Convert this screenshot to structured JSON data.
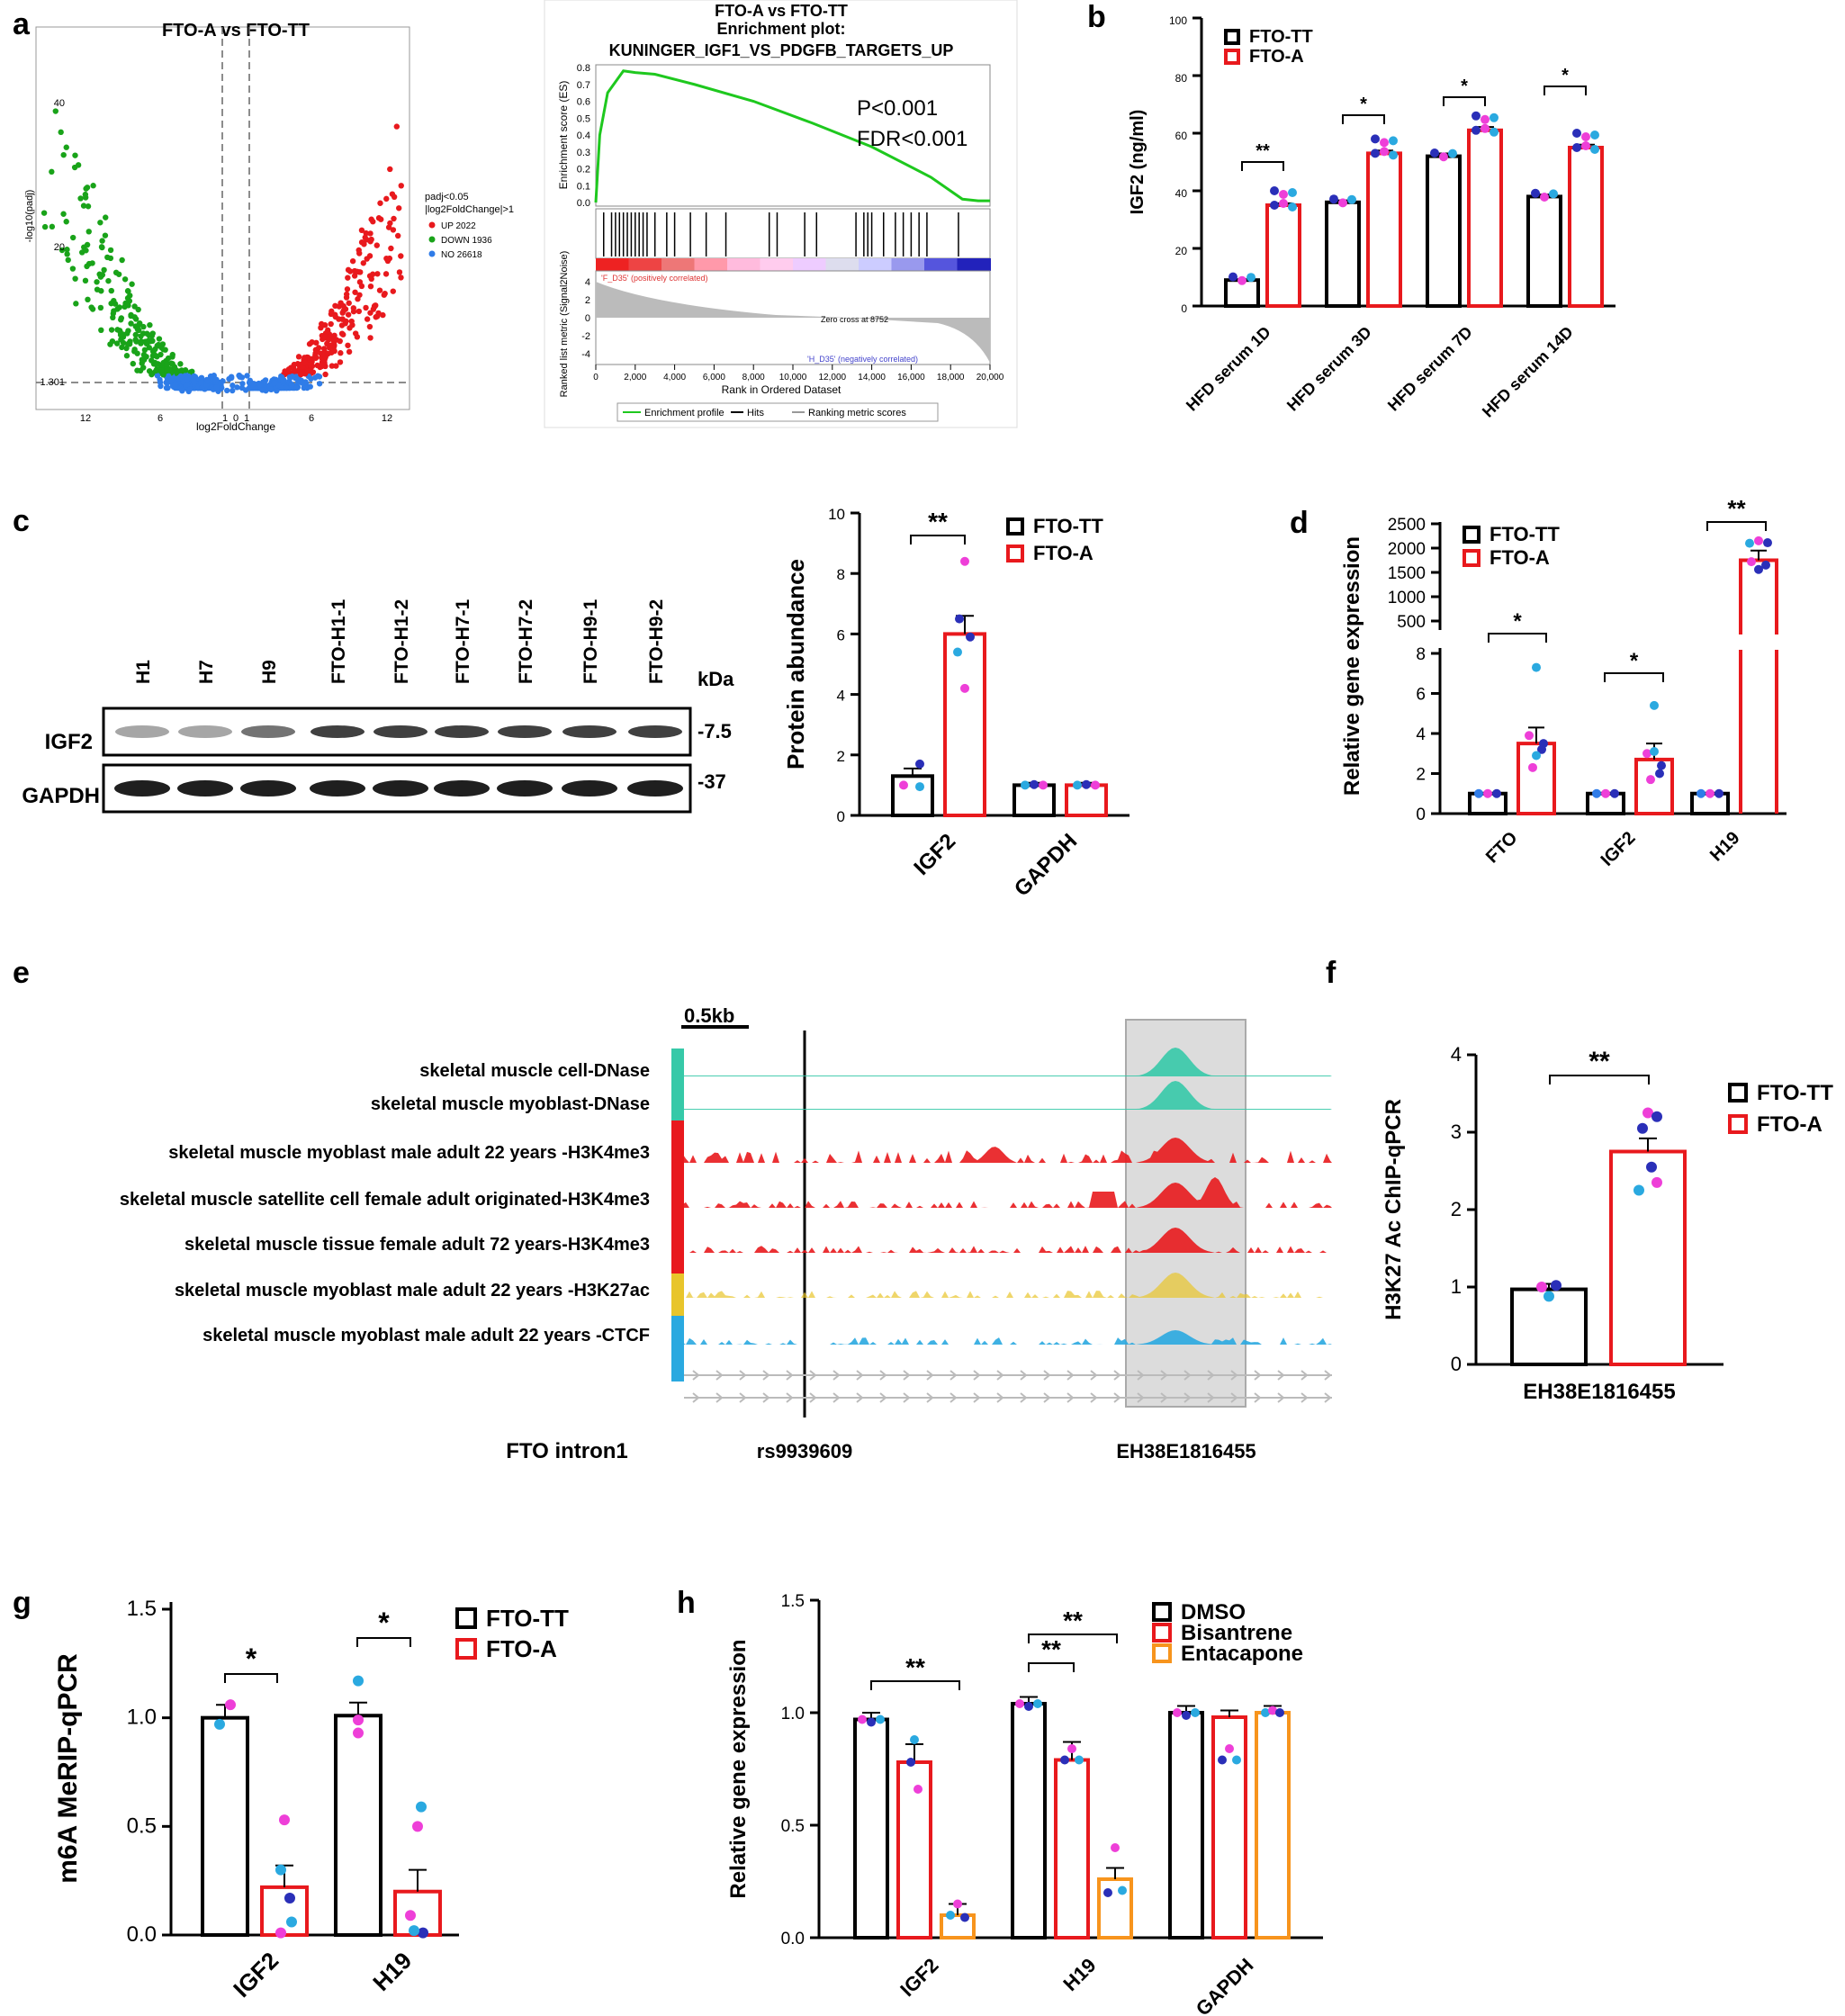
{
  "panel_letters": {
    "a": "a",
    "b": "b",
    "c": "c",
    "d": "d",
    "e": "e",
    "f": "f",
    "g": "g",
    "h": "h"
  },
  "colors": {
    "black": "#000000",
    "red": "#e8191d",
    "orange": "#f7941d",
    "green": "#19a319",
    "blue": "#2f7ce8",
    "pink": "#ee3fd8",
    "navy": "#2a2fb8",
    "cyan": "#2aa9e0",
    "teal": "#36c9a8",
    "gray": "#bdbdbd",
    "yellow": "#e8c52b"
  },
  "volcano": {
    "title": "FTO-A   vs FTO-TT",
    "xlabel": "log2FoldChange",
    "ylabel": "-log10(padj)",
    "xticks": [
      "12",
      "6",
      "1",
      "0",
      "1",
      "6",
      "12"
    ],
    "yticks": [
      "40",
      "20",
      "1.301"
    ],
    "legend_title": [
      "padj<0.05",
      "|log2FoldChange|>1"
    ],
    "legend_items": [
      {
        "label": "UP 2022",
        "color": "#e8191d"
      },
      {
        "label": "DOWN 1936",
        "color": "#19a319"
      },
      {
        "label": "NO 26618",
        "color": "#2f7ce8"
      }
    ]
  },
  "gsea": {
    "title1": "FTO-A vs FTO-TT",
    "title2": "Enrichment plot:",
    "title3": "KUNINGER_IGF1_VS_PDGFB_TARGETS_UP",
    "es_ylabel": "Enrichment score (ES)",
    "es_ticks": [
      "0.8",
      "0.7",
      "0.6",
      "0.5",
      "0.4",
      "0.3",
      "0.2",
      "0.1",
      "0.0"
    ],
    "pval": "P<0.001",
    "fdr": "FDR<0.001",
    "rank_ylabel": "Ranked list metric (Signal2Noise)",
    "rank_ticks": [
      "4",
      "2",
      "0",
      "-2",
      "-4"
    ],
    "pos_label": "'F_D35' (positively correlated)",
    "neg_label": "'H_D35' (negatively correlated)",
    "zero_cross": "Zero cross at 8752",
    "xlabel": "Rank in Ordered Dataset",
    "xticks": [
      "0",
      "2,000",
      "4,000",
      "6,000",
      "8,000",
      "10,000",
      "12,000",
      "14,000",
      "16,000",
      "18,000",
      "20,000"
    ],
    "legend": [
      "Enrichment profile",
      "Hits",
      "Ranking metric scores"
    ]
  },
  "chart_data": [
    {
      "id": "b",
      "type": "bar",
      "ylabel": "IGF2 (ng/ml)",
      "ylim": [
        0,
        100
      ],
      "yticks": [
        "0",
        "20",
        "40",
        "60",
        "80",
        "100"
      ],
      "categories": [
        "HFD serum 1D",
        "HFD serum 3D",
        "HFD serum 7D",
        "HFD serum 14D"
      ],
      "series": [
        {
          "name": "FTO-TT",
          "values": [
            9,
            36,
            52,
            38
          ]
        },
        {
          "name": "FTO-A",
          "values": [
            35,
            53,
            61,
            55
          ]
        }
      ],
      "significance": [
        "**",
        "*",
        "*",
        "*"
      ]
    },
    {
      "id": "c",
      "type": "bar",
      "ylabel": "Protein abundance",
      "ylim": [
        0,
        10
      ],
      "yticks": [
        "0",
        "2",
        "4",
        "6",
        "8",
        "10"
      ],
      "categories": [
        "IGF2",
        "GAPDH"
      ],
      "series": [
        {
          "name": "FTO-TT",
          "values": [
            1.3,
            1.0
          ]
        },
        {
          "name": "FTO-A",
          "values": [
            6.0,
            1.0
          ]
        }
      ],
      "significance": [
        "**",
        ""
      ]
    },
    {
      "id": "d",
      "type": "bar",
      "ylabel": "Relative gene expression",
      "yticks_low": [
        "0",
        "2",
        "4",
        "6",
        "8"
      ],
      "yticks_high": [
        "500",
        "1000",
        "1500",
        "2000",
        "2500"
      ],
      "categories": [
        "FTO",
        "IGF2",
        "H19"
      ],
      "series": [
        {
          "name": "FTO-TT",
          "values": [
            1,
            1,
            1
          ]
        },
        {
          "name": "FTO-A",
          "values": [
            3.5,
            2.7,
            1750
          ]
        }
      ],
      "significance": [
        "*",
        "*",
        "**"
      ]
    },
    {
      "id": "f",
      "type": "bar",
      "ylabel": "H3K27 Ac ChIP-qPCR",
      "ylim": [
        0,
        4
      ],
      "yticks": [
        "0",
        "1",
        "2",
        "3",
        "4"
      ],
      "categories": [
        "EH38E1816455"
      ],
      "series": [
        {
          "name": "FTO-TT",
          "values": [
            0.97
          ]
        },
        {
          "name": "FTO-A",
          "values": [
            2.75
          ]
        }
      ],
      "significance": [
        "**"
      ]
    },
    {
      "id": "g",
      "type": "bar",
      "ylabel": "m6A MeRIP-qPCR",
      "ylim": [
        0,
        1.5
      ],
      "yticks": [
        "0.0",
        "0.5",
        "1.0",
        "1.5"
      ],
      "categories": [
        "IGF2",
        "H19"
      ],
      "series": [
        {
          "name": "FTO-TT",
          "values": [
            1.0,
            1.01
          ]
        },
        {
          "name": "FTO-A",
          "values": [
            0.22,
            0.2
          ]
        }
      ],
      "significance": [
        "*",
        "*"
      ]
    },
    {
      "id": "h",
      "type": "bar",
      "ylabel": "Relative gene expression",
      "ylim": [
        0,
        1.5
      ],
      "yticks": [
        "0.0",
        "0.5",
        "1.0",
        "1.5"
      ],
      "categories": [
        "IGF2",
        "H19",
        "GAPDH"
      ],
      "series": [
        {
          "name": "DMSO",
          "values": [
            0.97,
            1.04,
            1.0
          ]
        },
        {
          "name": "Bisantrene",
          "values": [
            0.78,
            0.79,
            0.98
          ]
        },
        {
          "name": "Entacapone",
          "values": [
            0.1,
            0.26,
            1.0
          ]
        }
      ],
      "significance": [
        "**",
        "**",
        "**",
        ""
      ]
    }
  ],
  "western": {
    "lanes": [
      "H1",
      "H7",
      "H9",
      "FTO-H1-1",
      "FTO-H1-2",
      "FTO-H7-1",
      "FTO-H7-2",
      "FTO-H9-1",
      "FTO-H9-2"
    ],
    "kda_label": "kDa",
    "rows": [
      {
        "label": "IGF2",
        "kda": "-7.5"
      },
      {
        "label": "GAPDH",
        "kda": "-37"
      }
    ]
  },
  "tracks": {
    "scale_label": "0.5kb",
    "labels": [
      "skeletal muscle cell-DNase",
      "skeletal muscle myoblast-DNase",
      "skeletal muscle myoblast male adult 22 years -H3K4me3",
      "skeletal muscle satellite cell female adult originated-H3K4me3",
      "skeletal muscle tissue female adult 72 years-H3K4me3",
      "skeletal muscle myoblast male adult 22 years -H3K27ac",
      "skeletal muscle myoblast male adult 22 years -CTCF"
    ],
    "bottom_labels": {
      "intron": "FTO intron1",
      "snp": "rs9939609",
      "enhancer": "EH38E1816455"
    }
  }
}
